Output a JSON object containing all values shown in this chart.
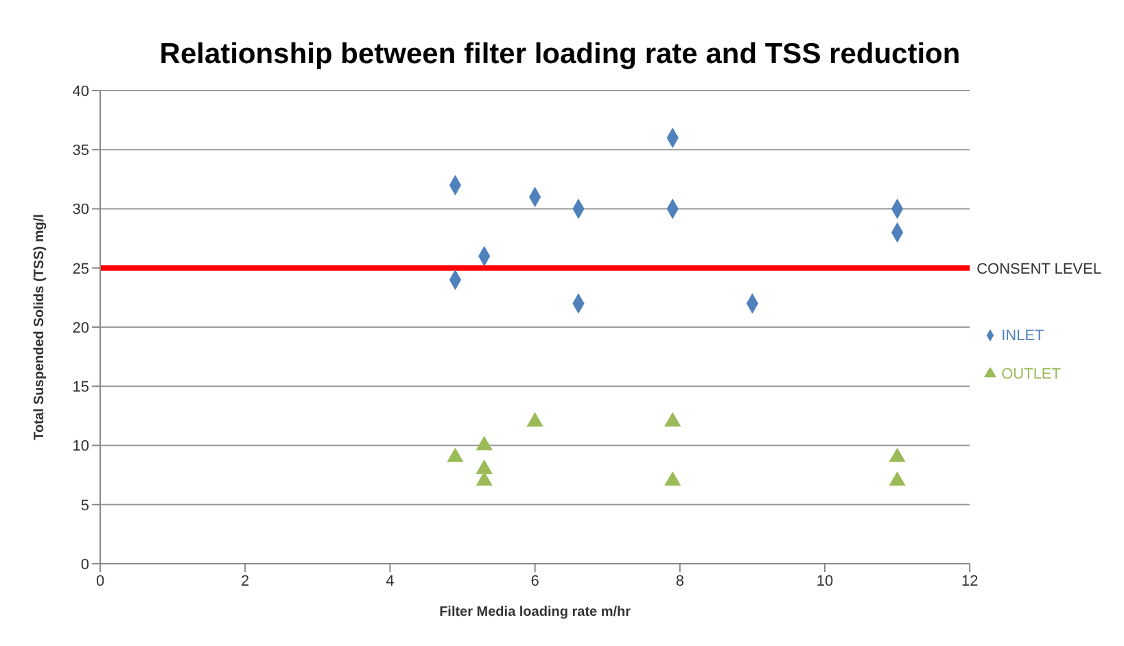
{
  "chart_data": {
    "type": "scatter",
    "title": "Relationship between filter loading rate and TSS reduction",
    "xlabel": "Filter Media loading rate m/hr",
    "ylabel": "Total Suspended Solids (TSS) mg/l",
    "xlim": [
      0,
      12
    ],
    "xticks": [
      0,
      2,
      4,
      6,
      8,
      10,
      12
    ],
    "ylim": [
      0,
      40
    ],
    "yticks": [
      0,
      5,
      10,
      15,
      20,
      25,
      30,
      35,
      40
    ],
    "grid": "y",
    "legend": "right",
    "series": [
      {
        "name": "INLET",
        "color": "#4f81bd",
        "marker": "diamond",
        "x": [
          4.9,
          4.9,
          5.3,
          6,
          6.6,
          6.6,
          7.9,
          7.9,
          9,
          11,
          11
        ],
        "values": [
          32,
          24,
          26,
          31,
          30,
          22,
          36,
          30,
          22,
          30,
          28
        ]
      },
      {
        "name": "OUTLET",
        "color": "#9bbb59",
        "marker": "triangle",
        "x": [
          4.9,
          5.3,
          5.3,
          5.3,
          6,
          7.9,
          7.9,
          11,
          11
        ],
        "values": [
          9,
          10,
          8,
          7,
          12,
          12,
          7,
          9,
          7
        ]
      }
    ],
    "ref_lines": [
      {
        "axis": "y",
        "value": 25,
        "label": "CONSENT LEVEL",
        "color": "#ff0000"
      }
    ]
  }
}
